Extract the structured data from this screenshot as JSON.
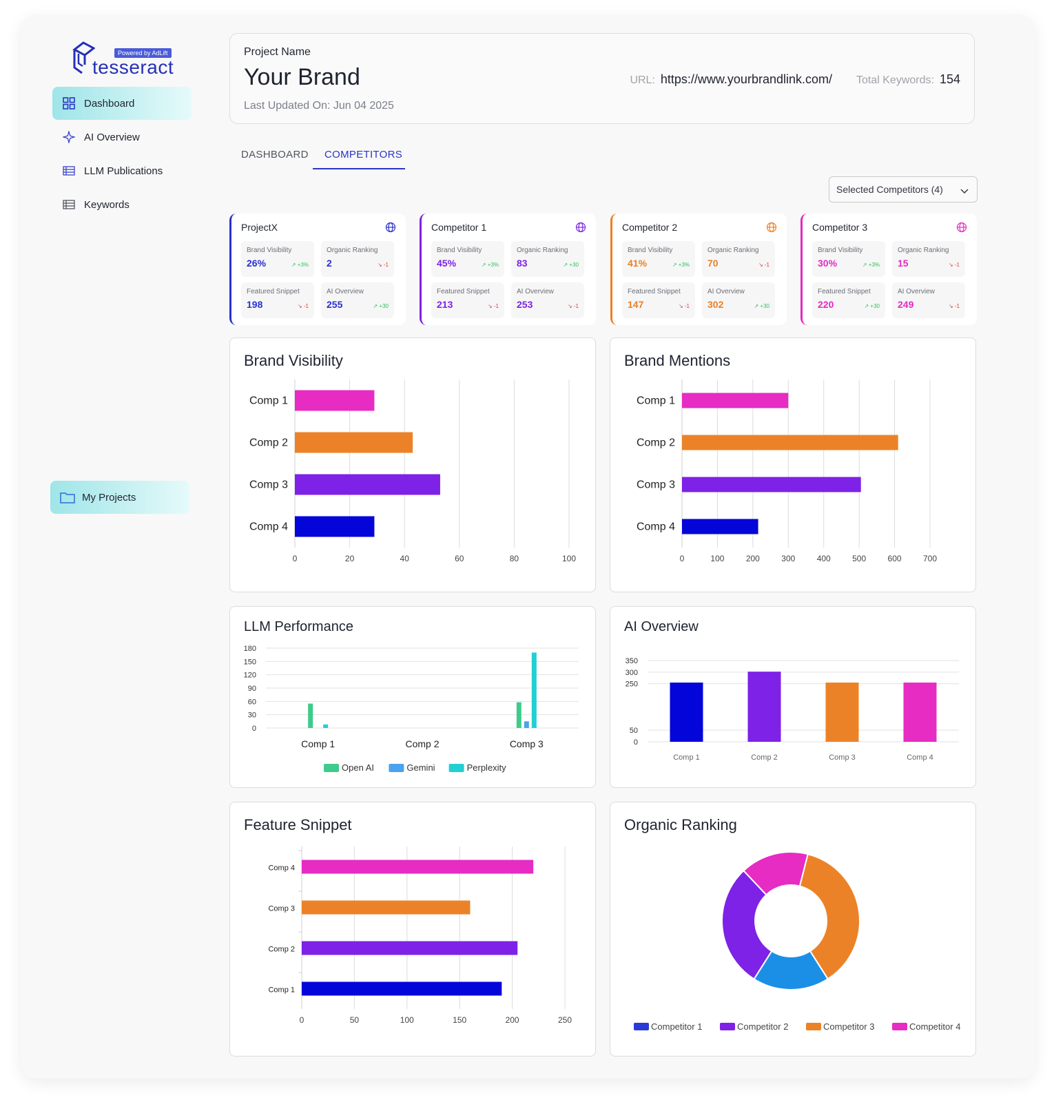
{
  "logo": {
    "badge": "Powered by AdLift",
    "word": "tesseract"
  },
  "sidebar": {
    "items": [
      {
        "label": "Dashboard",
        "icon": "grid-icon",
        "active": true
      },
      {
        "label": "AI Overview",
        "icon": "sparkle-icon",
        "active": false
      },
      {
        "label": "LLM Publications",
        "icon": "table-icon",
        "active": false
      },
      {
        "label": "Keywords",
        "icon": "list-icon",
        "active": false
      }
    ],
    "projects_label": "My Projects"
  },
  "header": {
    "project_label": "Project Name",
    "brand": "Your Brand",
    "updated": "Last Updated On: Jun 04 2025",
    "url_label": "URL:",
    "url": "https://www.yourbrandlink.com/",
    "keywords_label": "Total Keywords:",
    "keywords": "154"
  },
  "tabs": [
    {
      "label": "DASHBOARD"
    },
    {
      "label": "COMPETITORS"
    }
  ],
  "selector": {
    "label": "Selected Competitors (4)"
  },
  "competitors": [
    {
      "name": "ProjectX",
      "color": "#2a2fd0",
      "metrics": [
        {
          "label": "Brand Visibility",
          "value": "26%",
          "trend": "+3%",
          "dir": "up"
        },
        {
          "label": "Organic Ranking",
          "value": "2",
          "trend": "-1",
          "dir": "down"
        },
        {
          "label": "Featured Snippet",
          "value": "198",
          "trend": "-1",
          "dir": "down"
        },
        {
          "label": "AI Overview",
          "value": "255",
          "trend": "+30",
          "dir": "up"
        }
      ]
    },
    {
      "name": "Competitor 1",
      "color": "#7d22e6",
      "metrics": [
        {
          "label": "Brand Visibility",
          "value": "45%",
          "trend": "+3%",
          "dir": "up"
        },
        {
          "label": "Organic Ranking",
          "value": "83",
          "trend": "+30",
          "dir": "up"
        },
        {
          "label": "Featured Snippet",
          "value": "213",
          "trend": "-1",
          "dir": "down"
        },
        {
          "label": "AI Overview",
          "value": "253",
          "trend": "-1",
          "dir": "down"
        }
      ]
    },
    {
      "name": "Competitor 2",
      "color": "#ec7f24",
      "metrics": [
        {
          "label": "Brand Visibility",
          "value": "41%",
          "trend": "+3%",
          "dir": "up"
        },
        {
          "label": "Organic Ranking",
          "value": "70",
          "trend": "-1",
          "dir": "down"
        },
        {
          "label": "Featured Snippet",
          "value": "147",
          "trend": "-1",
          "dir": "down"
        },
        {
          "label": "AI Overview",
          "value": "302",
          "trend": "+30",
          "dir": "up"
        }
      ]
    },
    {
      "name": "Competitor 3",
      "color": "#e22ac2",
      "metrics": [
        {
          "label": "Brand Visibility",
          "value": "30%",
          "trend": "+3%",
          "dir": "up"
        },
        {
          "label": "Organic Ranking",
          "value": "15",
          "trend": "-1",
          "dir": "down"
        },
        {
          "label": "Featured Snippet",
          "value": "220",
          "trend": "+30",
          "dir": "up"
        },
        {
          "label": "AI Overview",
          "value": "249",
          "trend": "-1",
          "dir": "down"
        }
      ]
    }
  ],
  "chart_data": [
    {
      "id": "brand_visibility",
      "type": "bar",
      "orientation": "horizontal",
      "title": "Brand Visibility",
      "categories": [
        "Comp 1",
        "Comp 2",
        "Comp 3",
        "Comp 4"
      ],
      "values": [
        29,
        43,
        53,
        29
      ],
      "colors": [
        "#e62cc3",
        "#ec8227",
        "#7d22e6",
        "#0405d8"
      ],
      "xticks": [
        0,
        20,
        40,
        60,
        80,
        100
      ],
      "xlim": [
        0,
        100
      ],
      "grid": true
    },
    {
      "id": "brand_mentions",
      "type": "bar",
      "orientation": "horizontal",
      "title": "Brand Mentions",
      "categories": [
        "Comp 1",
        "Comp 2",
        "Comp 3",
        "Comp 4"
      ],
      "values": [
        300,
        610,
        505,
        215
      ],
      "colors": [
        "#e62cc3",
        "#ec8227",
        "#7d22e6",
        "#0405d8"
      ],
      "xticks": [
        0,
        100,
        200,
        300,
        400,
        500,
        600,
        700
      ],
      "xlim": [
        0,
        700
      ],
      "grid": true
    },
    {
      "id": "llm_performance",
      "type": "bar",
      "orientation": "vertical",
      "title": "LLM Performance",
      "categories": [
        "Comp 1",
        "Comp 2",
        "Comp 3"
      ],
      "series": [
        {
          "name": "Open AI",
          "color": "#3fcb8b",
          "values": [
            55,
            0,
            58
          ]
        },
        {
          "name": "Gemini",
          "color": "#4aa3ec",
          "values": [
            0,
            0,
            15
          ]
        },
        {
          "name": "Perplexity",
          "color": "#22cfd3",
          "values": [
            8,
            0,
            170
          ]
        }
      ],
      "yticks": [
        0,
        30,
        60,
        90,
        120,
        150,
        180
      ],
      "ylim": [
        0,
        180
      ],
      "legend": "bottom",
      "grid": true
    },
    {
      "id": "ai_overview",
      "type": "bar",
      "orientation": "vertical",
      "title": "AI Overview",
      "categories": [
        "Comp 1",
        "Comp 2",
        "Comp 3",
        "Comp 4"
      ],
      "values": [
        255,
        302,
        255,
        255
      ],
      "colors": [
        "#0405d8",
        "#7d22e6",
        "#ec8227",
        "#e62cc3"
      ],
      "yticks": [
        0,
        50,
        250,
        300,
        350
      ],
      "ylim": [
        0,
        350
      ],
      "grid": true
    },
    {
      "id": "feature_snippet",
      "type": "bar",
      "orientation": "horizontal",
      "title": "Feature Snippet",
      "categories": [
        "Comp 4",
        "Comp 3",
        "Comp 2",
        "Comp 1"
      ],
      "values": [
        220,
        160,
        205,
        190
      ],
      "colors": [
        "#e62cc3",
        "#ec8227",
        "#7d22e6",
        "#0405d8"
      ],
      "xticks": [
        0,
        50,
        100,
        150,
        200,
        250
      ],
      "xlim": [
        0,
        250
      ],
      "grid": true
    },
    {
      "id": "organic_ranking",
      "type": "pie",
      "donut": true,
      "title": "Organic Ranking",
      "slices": [
        {
          "name": "Competitor 3",
          "value": 37,
          "color": "#ec8227"
        },
        {
          "name": "Competitor 1",
          "value": 18,
          "color": "#1b8fe6"
        },
        {
          "name": "Competitor 2",
          "value": 29,
          "color": "#7d22e6"
        },
        {
          "name": "Competitor 4",
          "value": 16,
          "color": "#e62cc3"
        }
      ],
      "legend": [
        {
          "name": "Competitor 1",
          "color": "#2a3ad4"
        },
        {
          "name": "Competitor 2",
          "color": "#7d22e6"
        },
        {
          "name": "Competitor 3",
          "color": "#ec8227"
        },
        {
          "name": "Competitor 4",
          "color": "#e62cc3"
        }
      ],
      "legend_position": "bottom"
    }
  ]
}
